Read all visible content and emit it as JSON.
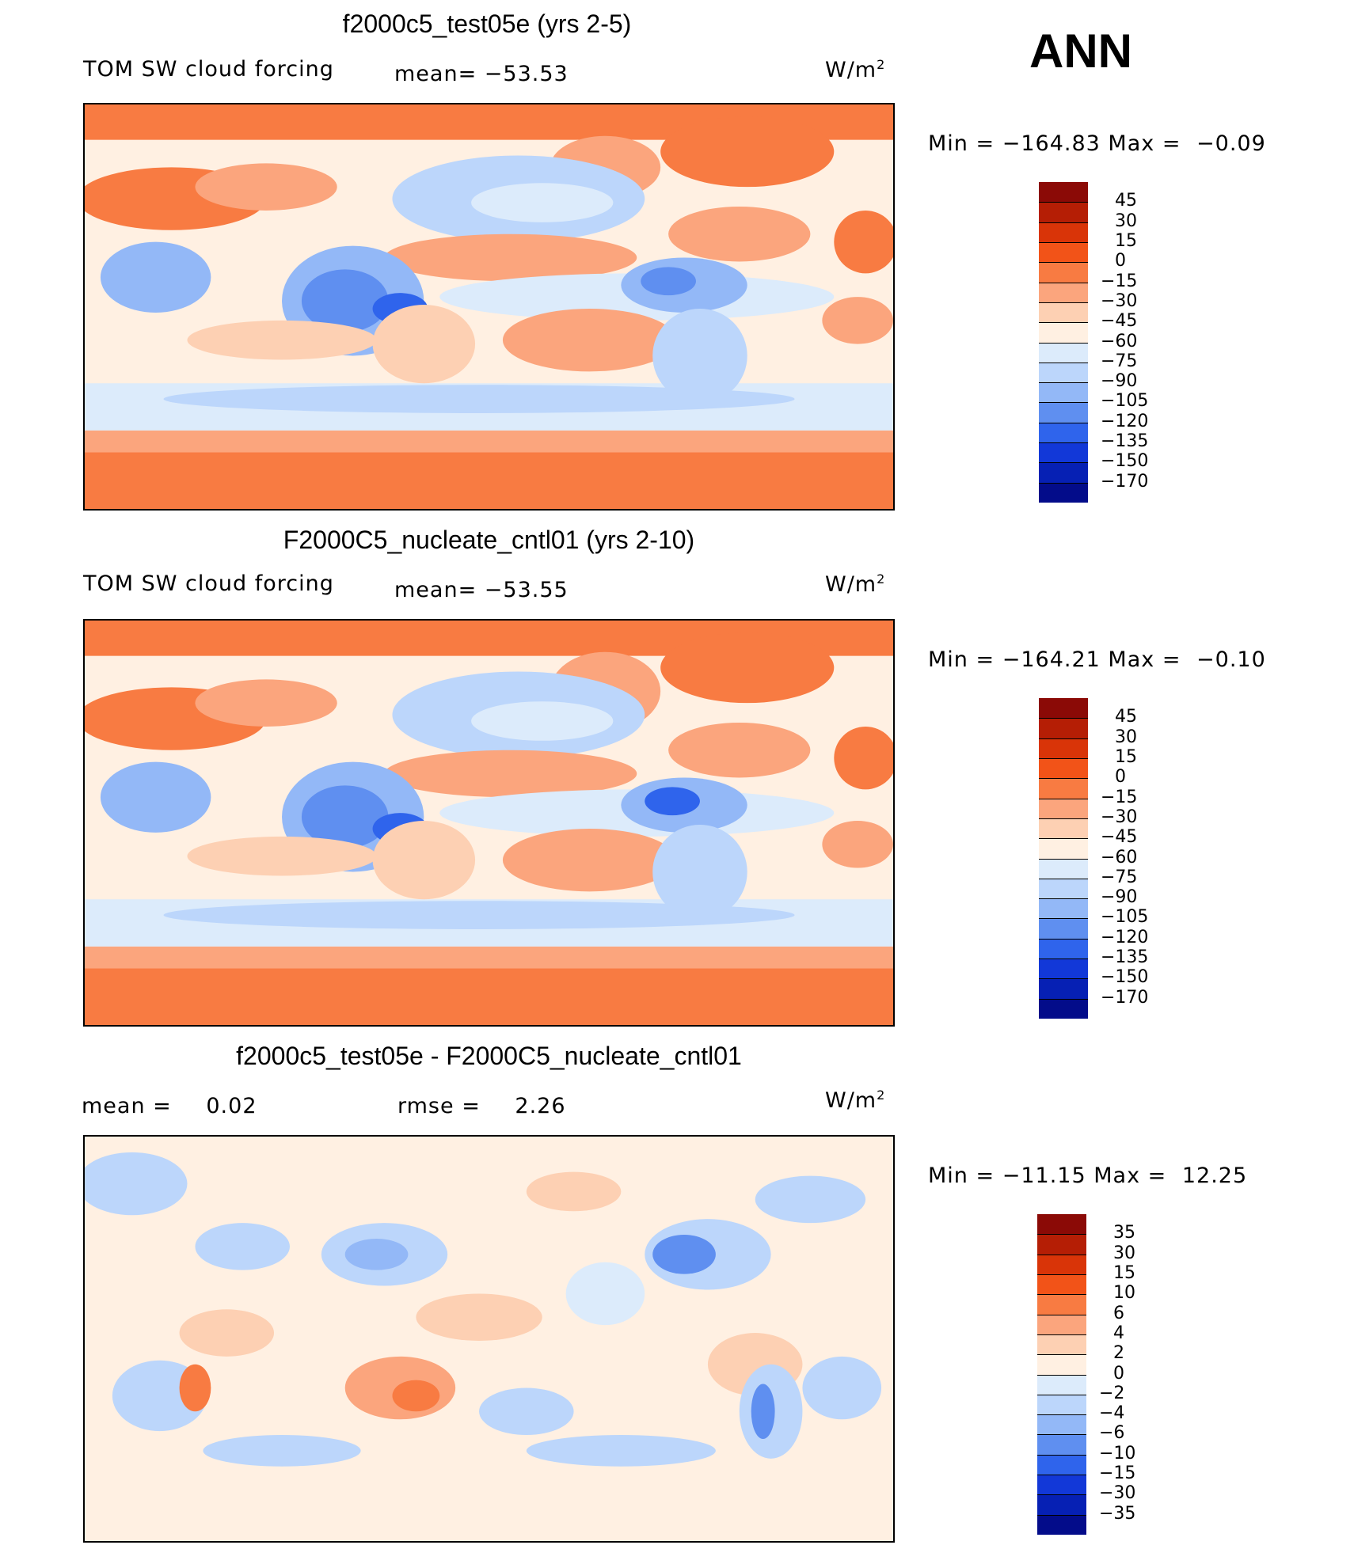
{
  "season": "ANN",
  "panels": [
    {
      "title": "f2000c5_test05e (yrs 2-5)",
      "variable": "TOM SW cloud forcing",
      "mean_label": "mean=",
      "mean_value": "−53.53",
      "units": "W/m",
      "units_exp": "2",
      "min_label": "Min  =",
      "min_value": "−164.83",
      "max_label": "Max  =",
      "max_value": "−0.09"
    },
    {
      "title": "F2000C5_nucleate_cntl01 (yrs 2-10)",
      "variable": "TOM SW cloud forcing",
      "mean_label": "mean=",
      "mean_value": "−53.55",
      "units": "W/m",
      "units_exp": "2",
      "min_label": "Min  =",
      "min_value": "−164.21",
      "max_label": "Max  =",
      "max_value": "−0.10"
    },
    {
      "title": "f2000c5_test05e - F2000C5_nucleate_cntl01",
      "mean_label": "mean  =",
      "mean_value": "0.02",
      "rmse_label": "rmse  =",
      "rmse_value": "2.26",
      "units": "W/m",
      "units_exp": "2",
      "min_label": "Min  =",
      "min_value": "−11.15",
      "max_label": "Max  =",
      "max_value": "12.25"
    }
  ],
  "chart_data": [
    {
      "type": "heatmap",
      "title": "f2000c5_test05e (yrs 2-5)",
      "variable": "TOM SW cloud forcing",
      "units": "W/m2",
      "mean": -53.53,
      "min": -164.83,
      "max": -0.09,
      "colorbar": {
        "levels": [
          "45",
          "30",
          "15",
          "0",
          "−15",
          "−30",
          "−45",
          "−60",
          "−75",
          "−90",
          "−105",
          "−120",
          "−135",
          "−150",
          "−170"
        ],
        "colors": [
          "#8b0a06",
          "#b51e05",
          "#d93408",
          "#f25318",
          "#f87b42",
          "#fba57d",
          "#fdd0b3",
          "#fff0e2",
          "#dcebfb",
          "#bcd6fb",
          "#93b8f7",
          "#5f8ff0",
          "#2f64ec",
          "#1238d8",
          "#0620b4",
          "#030c8a"
        ]
      }
    },
    {
      "type": "heatmap",
      "title": "F2000C5_nucleate_cntl01 (yrs 2-10)",
      "variable": "TOM SW cloud forcing",
      "units": "W/m2",
      "mean": -53.55,
      "min": -164.21,
      "max": -0.1,
      "colorbar": {
        "levels": [
          "45",
          "30",
          "15",
          "0",
          "−15",
          "−30",
          "−45",
          "−60",
          "−75",
          "−90",
          "−105",
          "−120",
          "−135",
          "−150",
          "−170"
        ],
        "colors": [
          "#8b0a06",
          "#b51e05",
          "#d93408",
          "#f25318",
          "#f87b42",
          "#fba57d",
          "#fdd0b3",
          "#fff0e2",
          "#dcebfb",
          "#bcd6fb",
          "#93b8f7",
          "#5f8ff0",
          "#2f64ec",
          "#1238d8",
          "#0620b4",
          "#030c8a"
        ]
      }
    },
    {
      "type": "heatmap",
      "title": "f2000c5_test05e - F2000C5_nucleate_cntl01",
      "units": "W/m2",
      "mean": 0.02,
      "rmse": 2.26,
      "min": -11.15,
      "max": 12.25,
      "colorbar": {
        "levels": [
          "35",
          "30",
          "15",
          "10",
          "6",
          "4",
          "2",
          "0",
          "−2",
          "−4",
          "−6",
          "−10",
          "−15",
          "−30",
          "−35"
        ],
        "colors": [
          "#8b0a06",
          "#b51e05",
          "#d93408",
          "#f25318",
          "#f87b42",
          "#fba57d",
          "#fdd0b3",
          "#fff0e2",
          "#dcebfb",
          "#bcd6fb",
          "#93b8f7",
          "#5f8ff0",
          "#2f64ec",
          "#1238d8",
          "#0620b4",
          "#030c8a"
        ]
      }
    }
  ]
}
